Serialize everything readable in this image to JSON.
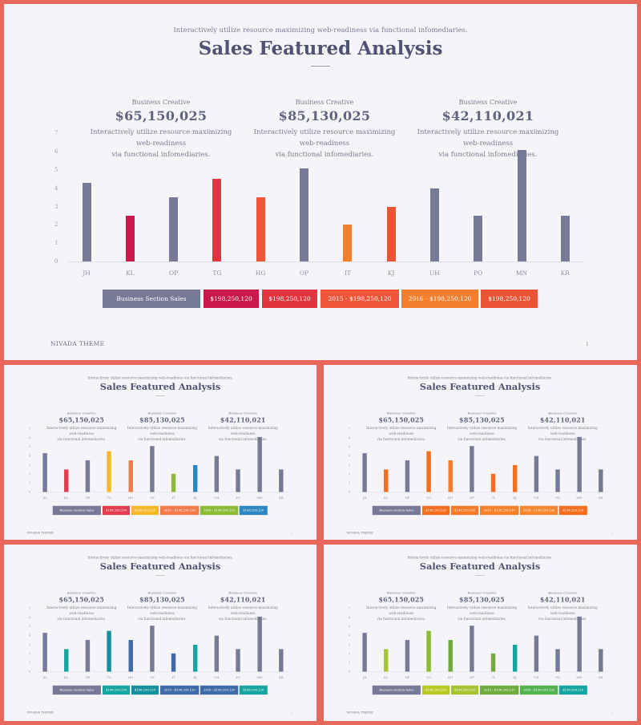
{
  "header": {
    "tagline": "Interactively utilize resource maximizing web-readiness via functional infomediaries.",
    "title": "Sales Featured Analysis"
  },
  "stats": [
    {
      "label": "Business Creative",
      "value": "$65,150,025",
      "desc_line1": "Interactively utilize resource maximizing web-readiness",
      "desc_line2": "via functional infomediaries."
    },
    {
      "label": "Business Creative",
      "value": "$85,130,025",
      "desc_line1": "Interactively utilize resource maximizing web-readiness",
      "desc_line2": "via functional infomediaries."
    },
    {
      "label": "Business Creative",
      "value": "$42,110,021",
      "desc_line1": "Interactively utilize resource maximizing web-readiness",
      "desc_line2": "via functional infomediaries."
    }
  ],
  "legend": [
    "Business Section Sales",
    "$198,250,120",
    "$198,250,120",
    "2015 - $198,250,120",
    "2016 - $198,250,120",
    "$198,250,120"
  ],
  "footer": {
    "brand": "NIVADA THEME",
    "page": "1"
  },
  "chart_data": {
    "type": "bar",
    "categories": [
      "JH",
      "KL",
      "OP",
      "TG",
      "HG",
      "OP",
      "IT",
      "KJ",
      "UH",
      "PO",
      "MN",
      "KR"
    ],
    "values": [
      4.3,
      2.5,
      3.5,
      4.5,
      3.5,
      5.1,
      2.0,
      3.0,
      4.0,
      2.5,
      6.1,
      2.5
    ],
    "ylim": [
      0,
      7
    ],
    "yticks": [
      "0",
      "1",
      "2",
      "3",
      "4",
      "5",
      "6",
      "7"
    ],
    "grid": false
  },
  "palettes": [
    {
      "neutral": "#777a96",
      "bars": {
        "1": "#c8194a",
        "3": "#e0343e",
        "4": "#f0573a",
        "6": "#f47e2c",
        "7": "#ea5434"
      },
      "legend": [
        "#777a96",
        "#c8194a",
        "#e0343e",
        "#f0573a",
        "#f47e2c",
        "#ea5434"
      ]
    },
    {
      "neutral": "#777a96",
      "bars": {
        "1": "#e33c4c",
        "3": "#f5b82b",
        "4": "#f37a4a",
        "6": "#8cbb38",
        "7": "#2c87c2"
      },
      "legend": [
        "#777a96",
        "#e33c4c",
        "#f5b82b",
        "#f37a4a",
        "#8cbb38",
        "#2c87c2"
      ]
    },
    {
      "neutral": "#777a96",
      "bars": {
        "1": "#f36f1f",
        "3": "#f36f1f",
        "4": "#f47e2c",
        "6": "#f36f1f",
        "7": "#f36f1f"
      },
      "legend": [
        "#777a96",
        "#f36f1f",
        "#f47a25",
        "#f58129",
        "#f6882d",
        "#f36f1f"
      ]
    },
    {
      "neutral": "#777a96",
      "bars": {
        "1": "#16a5a0",
        "3": "#14919c",
        "4": "#3f6aa8",
        "6": "#3f6aa8",
        "7": "#16a5a0"
      },
      "legend": [
        "#777a96",
        "#16a5a0",
        "#14919c",
        "#3f6aa8",
        "#3f6aa8",
        "#16a5a0"
      ]
    },
    {
      "neutral": "#777a96",
      "bars": {
        "1": "#a6c431",
        "3": "#8cbb38",
        "4": "#6fac3d",
        "6": "#6fac3d",
        "7": "#16a5a0"
      },
      "legend": [
        "#777a96",
        "#b8c925",
        "#a6c431",
        "#6fac3d",
        "#53b34f",
        "#16a5a0"
      ]
    }
  ]
}
